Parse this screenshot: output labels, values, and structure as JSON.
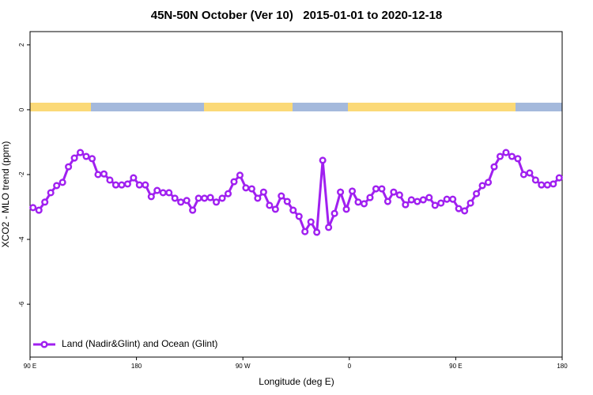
{
  "chart_data": {
    "type": "line",
    "title": "45N-50N October (Ver 10)   2015-01-01 to 2020-12-18",
    "x_label": "Longitude (deg E)",
    "y_label": "XCO2 - MLO trend (ppm)",
    "x": [
      92.5,
      97.5,
      102.5,
      107.5,
      112.5,
      117.5,
      122.5,
      127.5,
      132.5,
      137.5,
      142.5,
      147.5,
      152.5,
      157.5,
      162.5,
      167.5,
      172.5,
      177.5,
      182.5,
      187.5,
      192.5,
      197.5,
      202.5,
      207.5,
      212.5,
      217.5,
      222.5,
      227.5,
      232.5,
      237.5,
      242.5,
      247.5,
      252.5,
      257.5,
      262.5,
      267.5,
      272.5,
      277.5,
      282.5,
      287.5,
      292.5,
      297.5,
      302.5,
      307.5,
      312.5,
      317.5,
      322.5,
      327.5,
      332.5,
      337.5,
      342.5,
      347.5,
      352.5,
      357.5,
      362.5,
      367.5,
      372.5,
      377.5,
      382.5,
      387.5,
      392.5,
      397.5,
      402.5,
      407.5,
      412.5,
      417.5,
      422.5,
      427.5,
      432.5,
      437.5,
      442.5,
      447.5,
      452.5,
      457.5,
      462.5,
      467.5,
      472.5,
      477.5,
      482.5,
      487.5,
      492.5,
      497.5,
      502.5,
      507.5,
      512.5,
      517.5,
      522.5,
      527.5,
      532.5,
      537.5
    ],
    "series": [
      {
        "name": "Land (Nadir&Glint) and Ocean (Glint)",
        "color": "#a020f0",
        "values": [
          -3.02,
          -3.1,
          -2.85,
          -2.56,
          -2.34,
          -2.24,
          -1.76,
          -1.49,
          -1.32,
          -1.44,
          -1.51,
          -2.0,
          -1.98,
          -2.17,
          -2.32,
          -2.32,
          -2.29,
          -2.1,
          -2.32,
          -2.32,
          -2.68,
          -2.49,
          -2.56,
          -2.56,
          -2.73,
          -2.85,
          -2.8,
          -3.1,
          -2.73,
          -2.73,
          -2.71,
          -2.85,
          -2.73,
          -2.59,
          -2.22,
          -2.02,
          -2.41,
          -2.44,
          -2.73,
          -2.54,
          -2.95,
          -3.07,
          -2.66,
          -2.83,
          -3.1,
          -3.29,
          -3.76,
          -3.46,
          -3.78,
          -1.56,
          -3.63,
          -3.2,
          -2.54,
          -3.07,
          -2.51,
          -2.85,
          -2.9,
          -2.71,
          -2.44,
          -2.44,
          -2.83,
          -2.54,
          -2.63,
          -2.93,
          -2.78,
          -2.83,
          -2.78,
          -2.71,
          -2.95,
          -2.88,
          -2.76,
          -2.76,
          -3.05,
          -3.12,
          -2.88,
          -2.59,
          -2.34,
          -2.24,
          -1.76,
          -1.44,
          -1.32,
          -1.44,
          -1.51,
          -2.0,
          -1.95,
          -2.17,
          -2.32,
          -2.32,
          -2.29,
          -2.1
        ]
      }
    ],
    "xlim": [
      90,
      540
    ],
    "xticks": [
      {
        "value": 90,
        "label": "90 E"
      },
      180,
      {
        "value": 270,
        "label": "90 W"
      },
      {
        "value": 360,
        "label": "0"
      },
      {
        "value": 450,
        "label": "90 E"
      },
      {
        "value": 540,
        "label": "180"
      }
    ],
    "ylim": [
      -7.63,
      2.41
    ],
    "yticks": [
      2,
      0,
      -2,
      -4,
      -6
    ],
    "legend": "bottom-left"
  }
}
